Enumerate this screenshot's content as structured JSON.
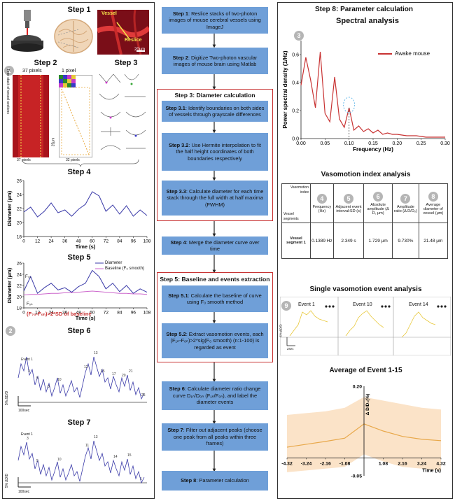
{
  "left": {
    "step1": "Step 1",
    "step2": "Step 2",
    "step3": "Step 3",
    "step4": "Step 4",
    "step5": "Step 5",
    "step6": "Step 6",
    "step7": "Step 7",
    "pixels37": "37 pixels",
    "pixel1": "1 pixel",
    "vessel_label": "Vessel",
    "reslice_label": "Reslice",
    "scale_20um": "20μm",
    "time_stack_label": "Time stack of vessel sections",
    "scale_25um": "25μm",
    "pixels32": "32 pixels",
    "pixels37b": "37 pixels",
    "diameter_axis": "Diameter (μm)",
    "time_axis": "Time (s)",
    "legend_diameter": "Diameter",
    "legend_baseline": "Baseline (F₀ smooth)",
    "f_peak": "F₇₀",
    "f_base": "F₀ₕ",
    "event_formula": "(F₇₀-F₀ₕ)>2*SD of baseline",
    "ratio_axis": "5% ΔD/D",
    "scale_100sec": "100sec",
    "event_1": "Event 1"
  },
  "flow": {
    "step1": {
      "title": "Step 1",
      "text": ": Reslice stacks of two-photon images of mouse cerebral vessels using ImageJ"
    },
    "step2": {
      "title": "Step 2",
      "text": ": Digitize Two-photon vascular images of mouse brain using Matlab"
    },
    "step3_title": "Step 3: Diameter calculation",
    "step31": {
      "title": "Step 3.1",
      "text": ": Identify boundaries on both sides of vessels through grayscale differences"
    },
    "step32": {
      "title": "Step 3.2",
      "text": ": Use Hermite interpolation to fit the half height coordinates of both boundaries respectively"
    },
    "step33": {
      "title": "Step 3.3",
      "text": ": Calculate diameter for each time stack through the full width at half maxima (FWHM)"
    },
    "step4": {
      "title": "Step 4",
      "text": ": Merge the diameter curve over time"
    },
    "step5_title": "Step 5: Baseline and events extraction",
    "step51": {
      "title": "Step 5.1",
      "text": ": Calculate the baseline of curve using F₀ smooth method"
    },
    "step52": {
      "title": "Step 5.2",
      "text": ": Extract vasomotion events, each (F₁ₙ-F₀ₙ)>2*sig(F₀ smooth) (n:1-100) is regarded as event"
    },
    "step6": {
      "title": "Step 6",
      "text": ": Calculate diameter ratio change curve D₁ₙ/D₀ₙ (F₁ₙ/F₀ₙ), and label the diameter events"
    },
    "step7": {
      "title": "Step 7",
      "text": ": Filter out adjacent peaks (choose one peak from all peaks within three frames)"
    },
    "step8": {
      "title": "Step 8",
      "text": ": Parameter calculation"
    }
  },
  "right": {
    "title": "Step 8: Parameter calculation",
    "spectral_title": "Spectral analysis",
    "legend": "Awake mouse",
    "ylabel": "Power spectral density (1/Hz)",
    "xlabel": "Frequency (Hz)",
    "index_title": "Vasomotion index analysis",
    "single_title": "Single vasomotion event analysis",
    "avg_title": "Average of Event 1-15",
    "avg_ylabel": "Δ D/D₀(%)",
    "avg_xlabel": "Time (s)",
    "events": [
      "Event 1",
      "Event 10",
      "Event 14"
    ],
    "ratio_small": "5% ΔD/D",
    "sec_small": "2sec"
  },
  "table": {
    "corner": [
      "Vasomotion",
      "index",
      "Vessel",
      "segments"
    ],
    "headers": [
      "Frequency (Hz)",
      "Adjacent event interval:SD (s)",
      "Absolute amplitude (Δ D, μm)",
      "Amplitude ratio (Δ D/D₀)",
      "Average diameter of vessel (μm)"
    ],
    "row_label": "Vessel segment 1",
    "values": [
      "0.1389 Hz",
      "2.349 s",
      "1.729 μm",
      "9.730%",
      "21.48 μm"
    ]
  },
  "badges": [
    "1",
    "2",
    "3",
    "4",
    "5",
    "6",
    "7",
    "8",
    "9"
  ],
  "colors": {
    "flow_box": "#6f9fd8",
    "red": "#c83232",
    "trace": "#3a3aa8",
    "baseline": "#cc66cc",
    "avg": "#e8a84a",
    "avg_band": "#fbe3c8"
  },
  "chart_data": [
    {
      "type": "line",
      "name": "step4",
      "x": [
        0,
        6,
        12,
        18,
        24,
        30,
        36,
        42,
        48,
        54,
        60,
        66,
        72,
        78,
        84,
        90,
        96,
        102,
        108
      ],
      "values": [
        21.5,
        22.2,
        20.8,
        21.6,
        22.8,
        21.4,
        21.8,
        20.9,
        21.9,
        22.6,
        24.4,
        23.8,
        21.6,
        22.5,
        21.2,
        22.4,
        20.9,
        21.8,
        21.0
      ],
      "ylabel": "Diameter (μm)",
      "xlabel": "Time (s)",
      "ylim": [
        18,
        26
      ],
      "xlim": [
        0,
        108
      ],
      "yticks": [
        18,
        20,
        22,
        24,
        26
      ],
      "xticks": [
        0,
        12,
        24,
        36,
        48,
        60,
        72,
        84,
        96,
        108
      ]
    },
    {
      "type": "line",
      "name": "step5",
      "x": [
        0,
        6,
        12,
        18,
        24,
        30,
        36,
        42,
        48,
        54,
        60,
        66,
        72,
        78,
        84,
        90,
        96,
        102,
        108
      ],
      "series": [
        {
          "name": "Diameter",
          "values": [
            21.0,
            23.6,
            20.6,
            21.6,
            22.4,
            21.2,
            21.6,
            20.8,
            21.8,
            22.4,
            24.7,
            23.6,
            21.4,
            22.4,
            20.9,
            22.0,
            20.6,
            21.4,
            20.8
          ]
        },
        {
          "name": "Baseline (F₀ smooth)",
          "values": [
            20.3,
            20.4,
            20.4,
            20.5,
            20.6,
            20.6,
            20.7,
            20.7,
            20.8,
            20.9,
            21.0,
            20.9,
            20.8,
            20.7,
            20.6,
            20.6,
            20.5,
            20.5,
            20.4
          ]
        }
      ],
      "ylabel": "Diameter (μm)",
      "xlabel": "Time (s)",
      "ylim": [
        18,
        26
      ],
      "xlim": [
        0,
        108
      ],
      "yticks": [
        18,
        20,
        22,
        24,
        26
      ],
      "xticks": [
        0,
        12,
        24,
        36,
        48,
        60,
        72,
        84,
        96,
        108
      ]
    },
    {
      "type": "line",
      "name": "spectral",
      "x": [
        0.0,
        0.01,
        0.02,
        0.03,
        0.04,
        0.05,
        0.06,
        0.07,
        0.08,
        0.09,
        0.1,
        0.11,
        0.12,
        0.13,
        0.14,
        0.15,
        0.16,
        0.17,
        0.18,
        0.19,
        0.2,
        0.22,
        0.24,
        0.26,
        0.28,
        0.3
      ],
      "series": [
        {
          "name": "Awake mouse",
          "values": [
            0.38,
            0.58,
            0.42,
            0.22,
            0.62,
            0.18,
            0.12,
            0.44,
            0.14,
            0.08,
            0.22,
            0.06,
            0.09,
            0.05,
            0.07,
            0.04,
            0.06,
            0.03,
            0.04,
            0.03,
            0.03,
            0.02,
            0.02,
            0.01,
            0.01,
            0.01
          ]
        }
      ],
      "ylabel": "Power spectral density (1/Hz)",
      "xlabel": "Frequency (Hz)",
      "xlim": [
        0,
        0.3
      ],
      "ylim": [
        0,
        0.7
      ],
      "xticks": [
        0.0,
        0.05,
        0.1,
        0.15,
        0.2,
        0.25,
        0.3
      ],
      "yticks": [
        0.0,
        0.2,
        0.4,
        0.6
      ]
    },
    {
      "type": "area",
      "name": "average",
      "x": [
        -4.32,
        -3.24,
        -2.16,
        -1.08,
        0,
        1.08,
        2.16,
        3.24,
        4.32
      ],
      "values": [
        0.03,
        0.038,
        0.046,
        0.055,
        0.095,
        0.075,
        0.06,
        0.052,
        0.048
      ],
      "upper": [
        0.12,
        0.125,
        0.13,
        0.14,
        0.17,
        0.16,
        0.15,
        0.14,
        0.135
      ],
      "lower": [
        -0.04,
        -0.035,
        -0.03,
        -0.025,
        0.01,
        -0.01,
        -0.025,
        -0.03,
        -0.035
      ],
      "ylabel": "Δ D/D₀(%)",
      "xlabel": "Time (s)",
      "xlim": [
        -4.32,
        4.32
      ],
      "ylim": [
        -0.05,
        0.2
      ],
      "yticks": [
        -0.05,
        0.2
      ],
      "xticks": [
        -4.32,
        -3.24,
        -2.16,
        -1.08,
        0,
        1.08,
        2.16,
        3.24,
        4.32
      ]
    }
  ]
}
